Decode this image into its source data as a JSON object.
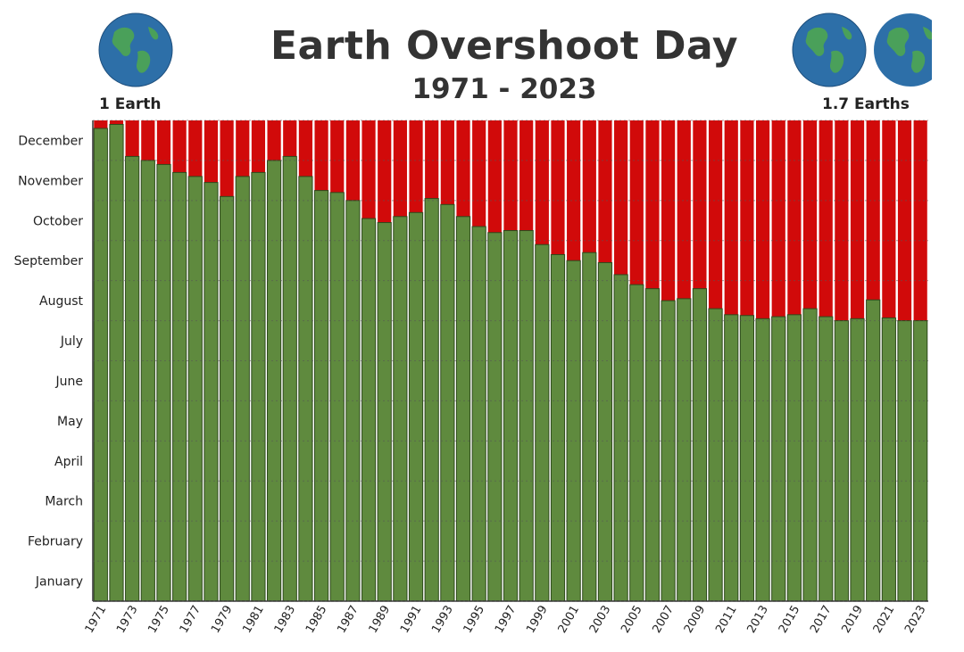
{
  "header": {
    "title": "Earth Overshoot Day",
    "subtitle": "1971 - 2023",
    "left_label": "1 Earth",
    "right_label": "1.7 Earths"
  },
  "colors": {
    "green": "#5f8a3e",
    "red": "#d10a0a",
    "ocean": "#2d6fa8",
    "land": "#4aa05a"
  },
  "icons": [
    "globe-icon"
  ],
  "chart_data": {
    "type": "bar",
    "stacked": true,
    "title": "Earth Overshoot Day",
    "subtitle": "1971 - 2023",
    "y_ticks": [
      "January",
      "February",
      "March",
      "April",
      "May",
      "June",
      "July",
      "August",
      "September",
      "October",
      "November",
      "December"
    ],
    "x_tick_labels": [
      "1971",
      "1973",
      "1975",
      "1977",
      "1979",
      "1981",
      "1983",
      "1985",
      "1987",
      "1989",
      "1991",
      "1993",
      "1995",
      "1997",
      "1999",
      "2001",
      "2003",
      "2005",
      "2007",
      "2009",
      "2011",
      "2013",
      "2015",
      "2017",
      "2019",
      "2021",
      "2023"
    ],
    "ylim_months": [
      0,
      12
    ],
    "grid": false,
    "x": [
      1971,
      1972,
      1973,
      1974,
      1975,
      1976,
      1977,
      1978,
      1979,
      1980,
      1981,
      1982,
      1983,
      1984,
      1985,
      1986,
      1987,
      1988,
      1989,
      1990,
      1991,
      1992,
      1993,
      1994,
      1995,
      1996,
      1997,
      1998,
      1999,
      2000,
      2001,
      2002,
      2003,
      2004,
      2005,
      2006,
      2007,
      2008,
      2009,
      2010,
      2011,
      2012,
      2013,
      2014,
      2015,
      2016,
      2017,
      2018,
      2019,
      2020,
      2021,
      2022,
      2023
    ],
    "series": [
      {
        "role": "green",
        "values_months": [
          11.8,
          11.9,
          11.1,
          11.0,
          10.9,
          10.7,
          10.6,
          10.45,
          10.1,
          10.6,
          10.7,
          11.0,
          11.1,
          10.6,
          10.25,
          10.2,
          10.0,
          9.55,
          9.45,
          9.6,
          9.7,
          10.05,
          9.9,
          9.6,
          9.35,
          9.2,
          9.25,
          9.25,
          8.9,
          8.65,
          8.5,
          8.7,
          8.45,
          8.15,
          7.9,
          7.8,
          7.5,
          7.55,
          7.8,
          7.3,
          7.15,
          7.13,
          7.05,
          7.1,
          7.15,
          7.3,
          7.1,
          7.0,
          7.05,
          7.52,
          7.07,
          7.0,
          7.0
        ]
      },
      {
        "role": "red",
        "values_months": [
          0.2,
          0.1,
          0.9,
          1.0,
          1.1,
          1.3,
          1.4,
          1.55,
          1.9,
          1.4,
          1.3,
          1.0,
          0.9,
          1.4,
          1.75,
          1.8,
          2.0,
          2.45,
          2.55,
          2.4,
          2.3,
          1.95,
          2.1,
          2.4,
          2.65,
          2.8,
          2.75,
          2.75,
          3.1,
          3.35,
          3.5,
          3.3,
          3.55,
          3.85,
          4.1,
          4.2,
          4.5,
          4.45,
          4.2,
          4.7,
          4.85,
          4.87,
          4.95,
          4.9,
          4.85,
          4.7,
          4.9,
          5.0,
          4.95,
          4.48,
          4.93,
          5.0,
          5.0
        ]
      }
    ]
  }
}
